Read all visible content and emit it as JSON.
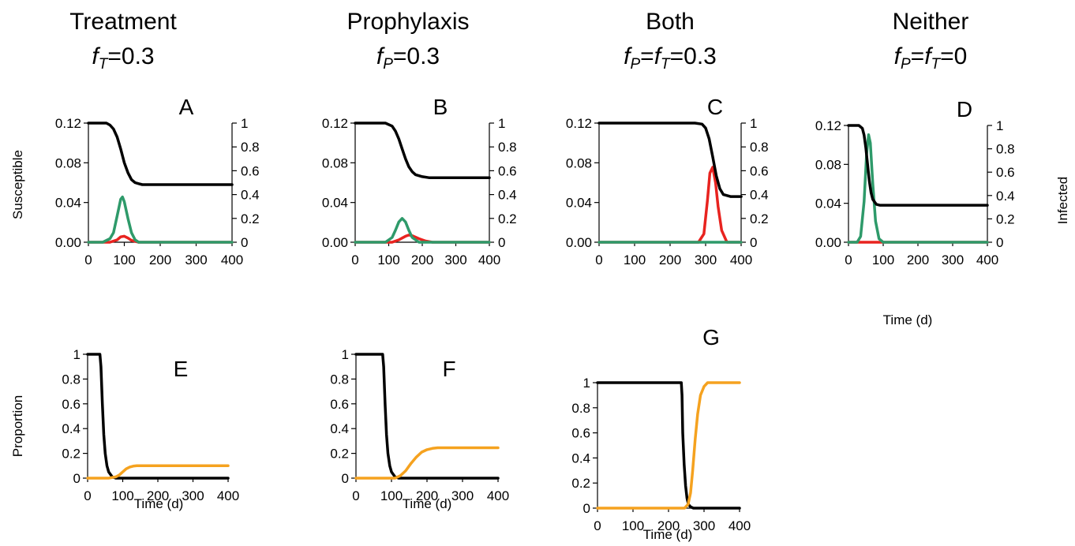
{
  "columns": [
    {
      "title": "Treatment",
      "param_parts": [
        {
          "t": "f",
          "sub": "T"
        },
        {
          "t": "=0.3"
        }
      ]
    },
    {
      "title": "Prophylaxis",
      "param_parts": [
        {
          "t": "f",
          "sub": "P"
        },
        {
          "t": "=0.3"
        }
      ]
    },
    {
      "title": "Both",
      "param_parts": [
        {
          "t": "f",
          "sub": "P"
        },
        {
          "t": "="
        },
        {
          "t": "f",
          "sub": "T"
        },
        {
          "t": "=0.3"
        }
      ]
    },
    {
      "title": "Neither",
      "param_parts": [
        {
          "t": "f",
          "sub": "P"
        },
        {
          "t": "="
        },
        {
          "t": "f",
          "sub": "T"
        },
        {
          "t": "=0"
        }
      ]
    }
  ],
  "labels": {
    "top_left_axis": "Susceptible",
    "top_right_axis": "Infected",
    "bottom_left_axis": "Proportion",
    "time_axis": "Time (d)"
  },
  "colors": {
    "susceptible": "#000000",
    "green_series": "#2e9a6a",
    "red_series": "#e8231f",
    "orange_series": "#f5a21f",
    "axis": "#000000"
  },
  "chart_data": [
    {
      "panel": "A",
      "type": "line",
      "xlim": [
        0,
        400
      ],
      "xticks": [
        0,
        100,
        200,
        300,
        400
      ],
      "ylim_left": [
        0,
        0.12
      ],
      "yticks_left": [
        "0.00",
        "0.04",
        "0.08",
        "0.12"
      ],
      "ylim_right": [
        0,
        1
      ],
      "yticks_right": [
        "0",
        "0.2",
        "0.4",
        "0.6",
        "0.8",
        "1"
      ],
      "series": [
        {
          "axis": "left",
          "color_key": "susceptible",
          "x": [
            0,
            50,
            60,
            70,
            80,
            90,
            100,
            110,
            120,
            130,
            140,
            150,
            200,
            300,
            400
          ],
          "y": [
            0.12,
            0.12,
            0.118,
            0.114,
            0.106,
            0.094,
            0.08,
            0.07,
            0.063,
            0.06,
            0.059,
            0.058,
            0.058,
            0.058,
            0.058
          ]
        },
        {
          "axis": "right",
          "color_key": "green_series",
          "x": [
            0,
            40,
            60,
            70,
            80,
            90,
            95,
            100,
            110,
            120,
            130,
            140,
            160,
            400
          ],
          "y": [
            0,
            0,
            0.03,
            0.08,
            0.22,
            0.36,
            0.38,
            0.34,
            0.2,
            0.08,
            0.02,
            0,
            0,
            0
          ]
        },
        {
          "axis": "right",
          "color_key": "red_series",
          "x": [
            0,
            60,
            80,
            90,
            100,
            110,
            120,
            140,
            400
          ],
          "y": [
            0,
            0,
            0.02,
            0.045,
            0.05,
            0.035,
            0.015,
            0,
            0
          ]
        }
      ]
    },
    {
      "panel": "B",
      "type": "line",
      "xlim": [
        0,
        400
      ],
      "xticks": [
        0,
        100,
        200,
        300,
        400
      ],
      "ylim_left": [
        0,
        0.12
      ],
      "yticks_left": [
        "0.00",
        "0.04",
        "0.08",
        "0.12"
      ],
      "ylim_right": [
        0,
        1
      ],
      "yticks_right": [
        "0",
        "0.2",
        "0.4",
        "0.6",
        "0.8",
        "1"
      ],
      "series": [
        {
          "axis": "left",
          "color_key": "susceptible",
          "x": [
            0,
            90,
            110,
            120,
            130,
            140,
            150,
            160,
            170,
            180,
            200,
            220,
            300,
            400
          ],
          "y": [
            0.12,
            0.12,
            0.117,
            0.112,
            0.104,
            0.094,
            0.084,
            0.076,
            0.071,
            0.068,
            0.066,
            0.065,
            0.065,
            0.065
          ]
        },
        {
          "axis": "right",
          "color_key": "green_series",
          "x": [
            0,
            90,
            110,
            120,
            130,
            140,
            150,
            160,
            170,
            190,
            400
          ],
          "y": [
            0,
            0,
            0.04,
            0.1,
            0.17,
            0.2,
            0.17,
            0.1,
            0.04,
            0,
            0
          ]
        },
        {
          "axis": "right",
          "color_key": "red_series",
          "x": [
            0,
            110,
            130,
            150,
            160,
            170,
            190,
            210,
            230,
            400
          ],
          "y": [
            0,
            0,
            0.02,
            0.05,
            0.06,
            0.055,
            0.03,
            0.01,
            0,
            0
          ]
        }
      ]
    },
    {
      "panel": "C",
      "type": "line",
      "xlim": [
        0,
        400
      ],
      "xticks": [
        0,
        100,
        200,
        300,
        400
      ],
      "ylim_left": [
        0,
        0.12
      ],
      "yticks_left": [
        "0.00",
        "0.04",
        "0.08",
        "0.12"
      ],
      "ylim_right": [
        0,
        1
      ],
      "yticks_right": [
        "0",
        "0.2",
        "0.4",
        "0.6",
        "0.8",
        "1"
      ],
      "series": [
        {
          "axis": "left",
          "color_key": "susceptible",
          "x": [
            0,
            270,
            290,
            300,
            310,
            320,
            330,
            340,
            350,
            370,
            400
          ],
          "y": [
            0.12,
            0.12,
            0.119,
            0.115,
            0.104,
            0.086,
            0.067,
            0.054,
            0.048,
            0.046,
            0.046
          ]
        },
        {
          "axis": "right",
          "color_key": "red_series",
          "x": [
            0,
            280,
            295,
            305,
            312,
            320,
            328,
            335,
            345,
            360,
            400
          ],
          "y": [
            0,
            0,
            0.07,
            0.35,
            0.58,
            0.63,
            0.5,
            0.3,
            0.1,
            0,
            0
          ]
        },
        {
          "axis": "right",
          "color_key": "green_series",
          "x": [
            0,
            400
          ],
          "y": [
            0,
            0
          ]
        }
      ]
    },
    {
      "panel": "D",
      "type": "line",
      "xlim": [
        0,
        400
      ],
      "xticks": [
        0,
        100,
        200,
        300,
        400
      ],
      "ylim_left": [
        0,
        0.12
      ],
      "yticks_left": [
        "0.00",
        "0.04",
        "0.08",
        "0.12"
      ],
      "ylim_right": [
        0,
        1
      ],
      "yticks_right": [
        "0",
        "0.2",
        "0.4",
        "0.6",
        "0.8",
        "1"
      ],
      "series": [
        {
          "axis": "left",
          "color_key": "susceptible",
          "x": [
            0,
            30,
            40,
            45,
            50,
            55,
            60,
            65,
            70,
            80,
            90,
            100,
            150,
            400
          ],
          "y": [
            0.12,
            0.12,
            0.117,
            0.11,
            0.097,
            0.08,
            0.063,
            0.051,
            0.044,
            0.039,
            0.038,
            0.038,
            0.038,
            0.038
          ]
        },
        {
          "axis": "right",
          "color_key": "green_series",
          "x": [
            0,
            25,
            35,
            45,
            52,
            58,
            63,
            70,
            78,
            88,
            100,
            400
          ],
          "y": [
            0,
            0,
            0.05,
            0.35,
            0.75,
            0.92,
            0.85,
            0.5,
            0.18,
            0.03,
            0,
            0
          ]
        },
        {
          "axis": "right",
          "color_key": "red_series",
          "x": [
            0,
            400
          ],
          "y": [
            0,
            0
          ]
        }
      ]
    },
    {
      "panel": "E",
      "type": "line",
      "xlim": [
        0,
        400
      ],
      "xticks": [
        0,
        100,
        200,
        300,
        400
      ],
      "ylim": [
        0,
        1
      ],
      "yticks": [
        "0",
        "0.2",
        "0.4",
        "0.6",
        "0.8",
        "1"
      ],
      "series": [
        {
          "color_key": "susceptible",
          "x": [
            0,
            35,
            38,
            42,
            46,
            50,
            55,
            60,
            70,
            80,
            400
          ],
          "y": [
            1,
            1,
            0.9,
            0.6,
            0.35,
            0.2,
            0.1,
            0.05,
            0.01,
            0,
            0
          ]
        },
        {
          "color_key": "orange_series",
          "x": [
            0,
            60,
            80,
            90,
            100,
            110,
            120,
            130,
            140,
            200,
            400
          ],
          "y": [
            0,
            0,
            0.01,
            0.025,
            0.05,
            0.075,
            0.09,
            0.097,
            0.1,
            0.1,
            0.1
          ]
        }
      ]
    },
    {
      "panel": "F",
      "type": "line",
      "xlim": [
        0,
        400
      ],
      "xticks": [
        0,
        100,
        200,
        300,
        400
      ],
      "ylim": [
        0,
        1
      ],
      "yticks": [
        "0",
        "0.2",
        "0.4",
        "0.6",
        "0.8",
        "1"
      ],
      "series": [
        {
          "color_key": "susceptible",
          "x": [
            0,
            75,
            78,
            82,
            86,
            90,
            95,
            100,
            110,
            120,
            400
          ],
          "y": [
            1,
            1,
            0.9,
            0.6,
            0.35,
            0.2,
            0.1,
            0.05,
            0.01,
            0,
            0
          ]
        },
        {
          "color_key": "orange_series",
          "x": [
            0,
            110,
            125,
            140,
            155,
            170,
            185,
            200,
            215,
            230,
            250,
            400
          ],
          "y": [
            0,
            0,
            0.02,
            0.06,
            0.12,
            0.17,
            0.21,
            0.23,
            0.24,
            0.245,
            0.245,
            0.245
          ]
        }
      ]
    },
    {
      "panel": "G",
      "type": "line",
      "xlim": [
        0,
        400
      ],
      "xticks": [
        0,
        100,
        200,
        300,
        400
      ],
      "ylim": [
        0,
        1
      ],
      "yticks": [
        "0",
        "0.2",
        "0.4",
        "0.6",
        "0.8",
        "1"
      ],
      "series": [
        {
          "color_key": "susceptible",
          "x": [
            0,
            236,
            238,
            240,
            244,
            248,
            252,
            256,
            262,
            270,
            400
          ],
          "y": [
            1,
            1,
            0.9,
            0.6,
            0.35,
            0.18,
            0.08,
            0.03,
            0.01,
            0,
            0
          ]
        },
        {
          "color_key": "orange_series",
          "x": [
            0,
            245,
            255,
            262,
            268,
            275,
            282,
            290,
            300,
            310,
            400
          ],
          "y": [
            0,
            0,
            0.03,
            0.12,
            0.3,
            0.55,
            0.75,
            0.9,
            0.97,
            1,
            1
          ]
        }
      ]
    }
  ]
}
